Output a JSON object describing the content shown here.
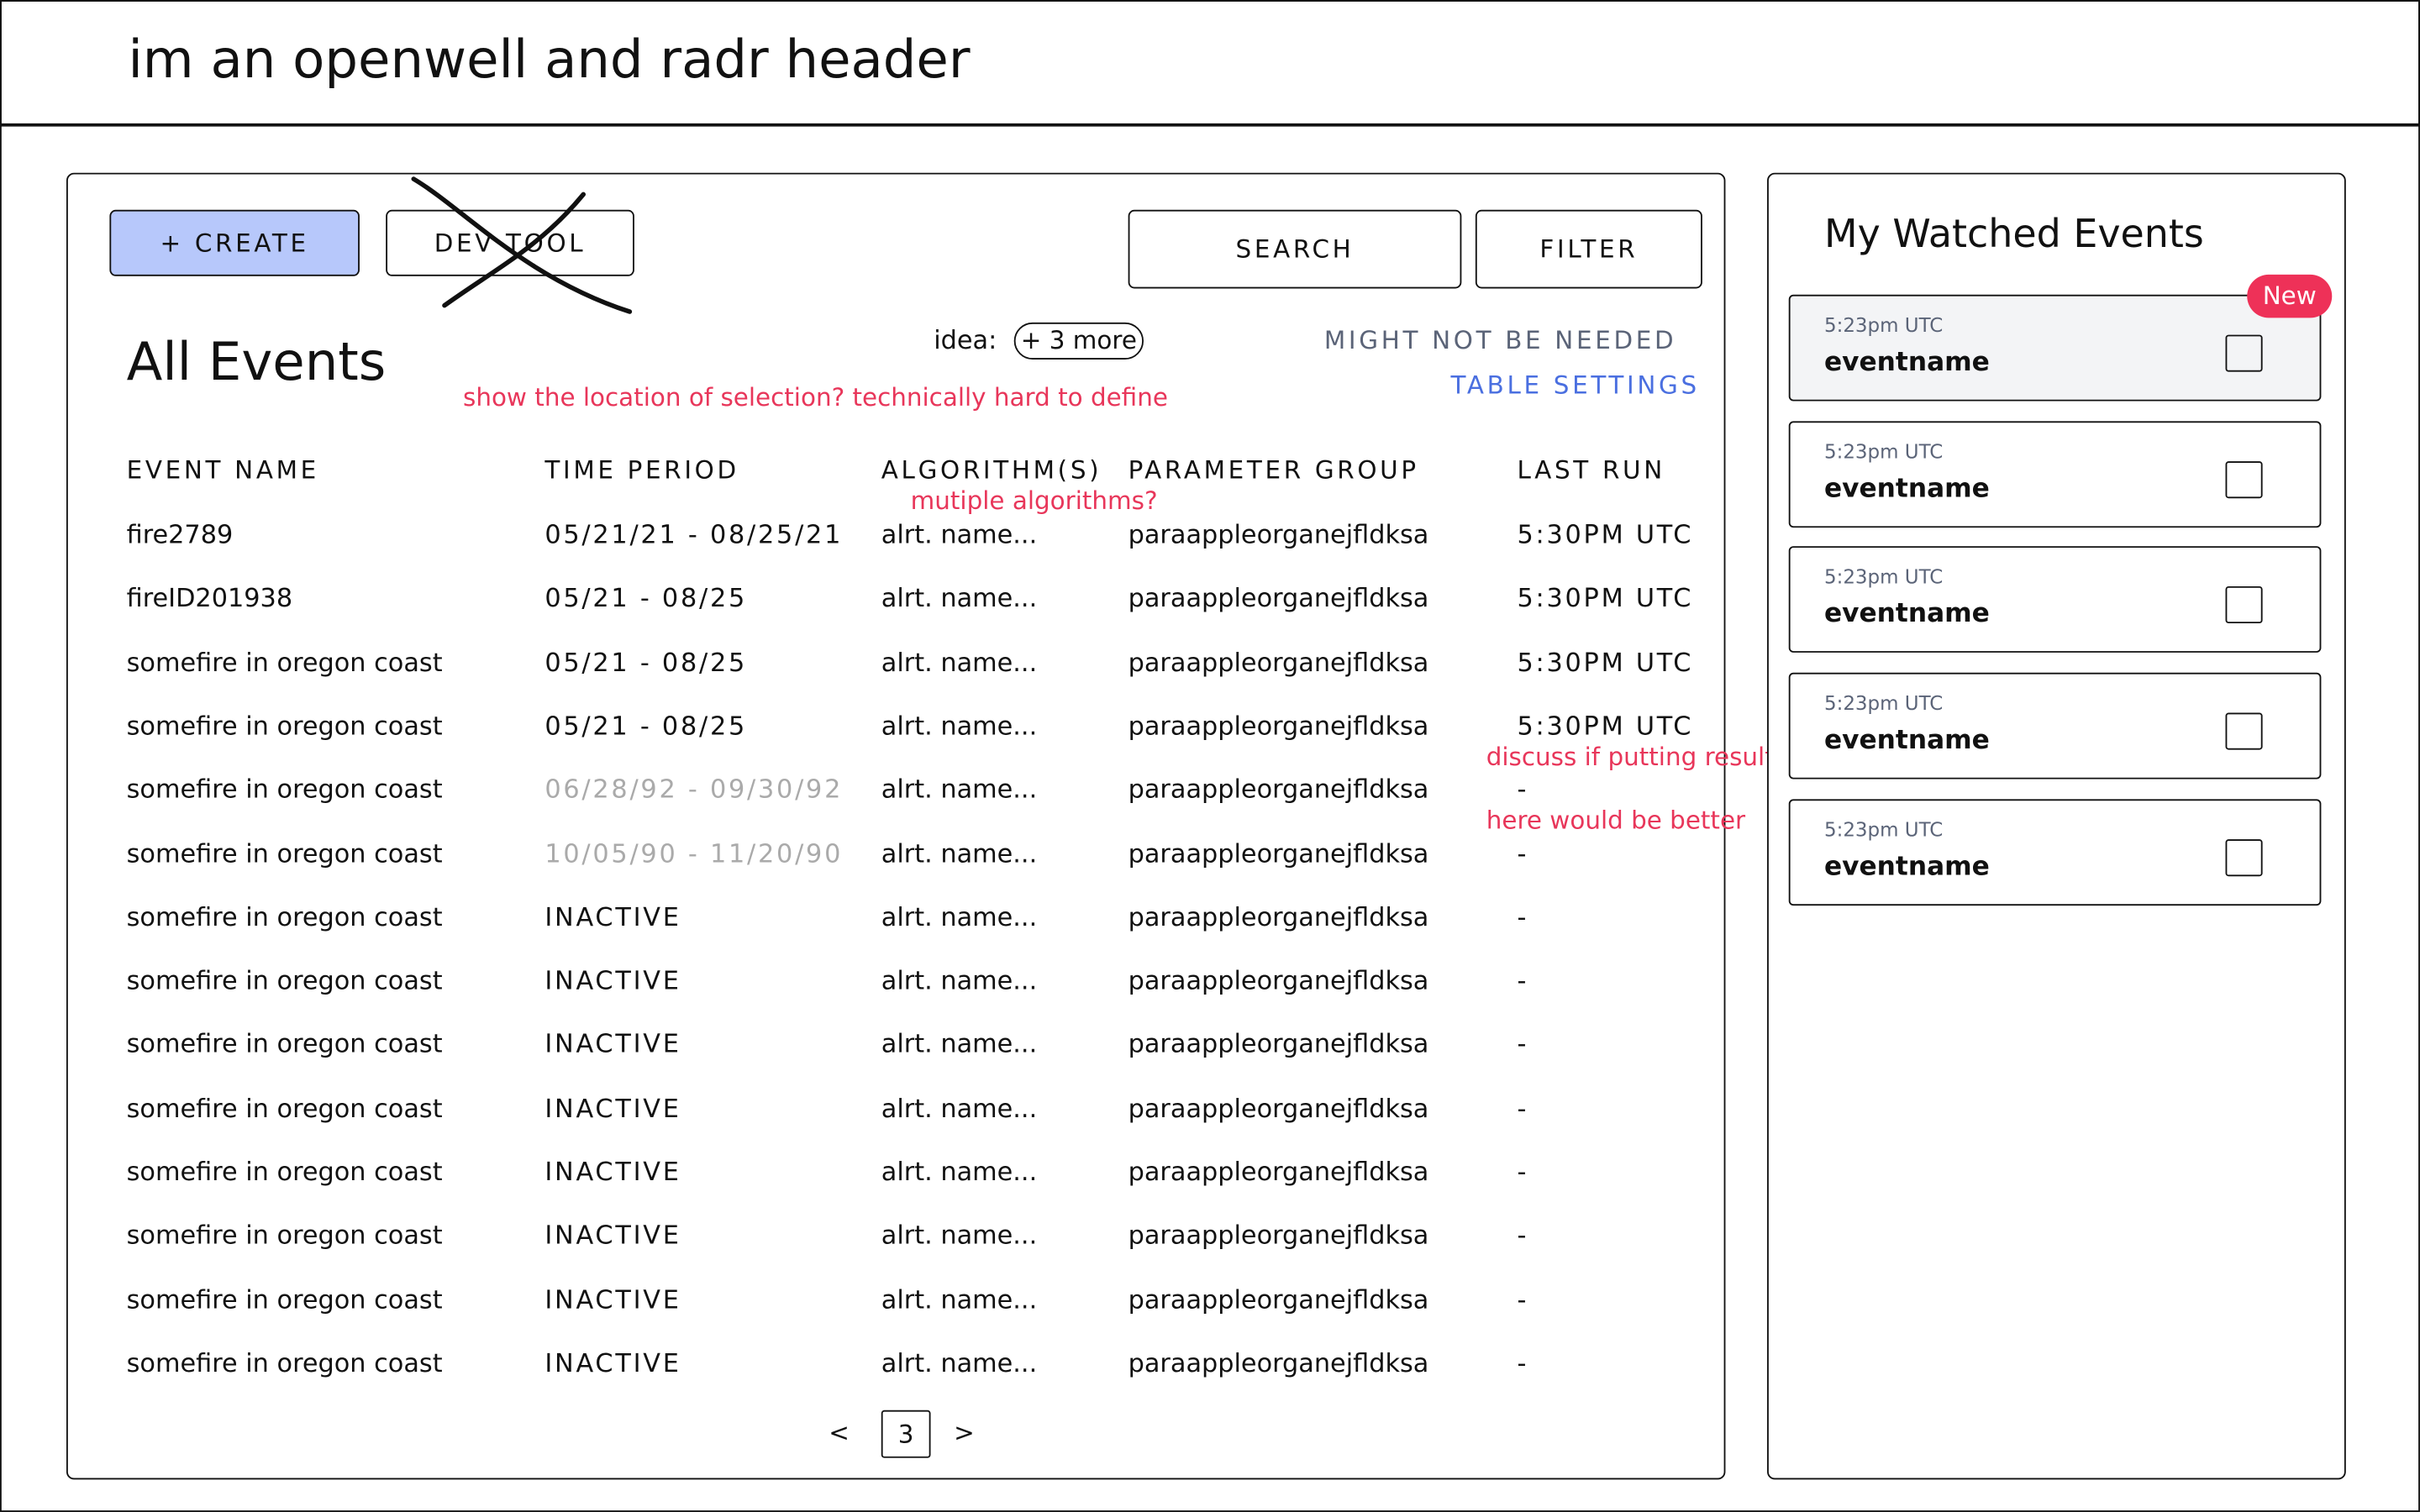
{
  "header": {
    "title": "im an openwell and radr header"
  },
  "toolbar": {
    "create_label": "+ CREATE",
    "devtool_label": "DEV TOOL",
    "search_label": "SEARCH",
    "filter_label": "FILTER"
  },
  "events": {
    "title": "All Events",
    "idea_label": "idea:",
    "more_chip": "+ 3 more",
    "might_not_be_needed": "MIGHT NOT BE NEEDED",
    "table_settings": "TABLE SETTINGS",
    "columns": [
      "EVENT NAME",
      "TIME PERIOD",
      "ALGORITHM(S)",
      "PARAMETER GROUP",
      "LAST RUN"
    ],
    "rows": [
      [
        "fire2789",
        "05/21/21 - 08/25/21",
        "alrt. name...",
        "paraappleorganejfldksa",
        "5:30PM UTC"
      ],
      [
        "fireID201938",
        "05/21 - 08/25",
        "alrt. name...",
        "paraappleorganejfldksa",
        "5:30PM UTC"
      ],
      [
        "somefire in oregon coast",
        "05/21 - 08/25",
        "alrt. name...",
        "paraappleorganejfldksa",
        "5:30PM UTC"
      ],
      [
        "somefire in oregon coast",
        "05/21 - 08/25",
        "alrt. name...",
        "paraappleorganejfldksa",
        "5:30PM UTC"
      ],
      [
        "somefire in oregon coast",
        "06/28/92 - 09/30/92",
        "alrt. name...",
        "paraappleorganejfldksa",
        "-"
      ],
      [
        "somefire in oregon coast",
        "10/05/90 - 11/20/90",
        "alrt. name...",
        "paraappleorganejfldksa",
        "-"
      ],
      [
        "somefire in oregon coast",
        "INACTIVE",
        "alrt. name...",
        "paraappleorganejfldksa",
        "-"
      ],
      [
        "somefire in oregon coast",
        "INACTIVE",
        "alrt. name...",
        "paraappleorganejfldksa",
        "-"
      ],
      [
        "somefire in oregon coast",
        "INACTIVE",
        "alrt. name...",
        "paraappleorganejfldksa",
        "-"
      ],
      [
        "somefire in oregon coast",
        "INACTIVE",
        "alrt. name...",
        "paraappleorganejfldksa",
        "-"
      ],
      [
        "somefire in oregon coast",
        "INACTIVE",
        "alrt. name...",
        "paraappleorganejfldksa",
        "-"
      ],
      [
        "somefire in oregon coast",
        "INACTIVE",
        "alrt. name...",
        "paraappleorganejfldksa",
        "-"
      ],
      [
        "somefire in oregon coast",
        "INACTIVE",
        "alrt. name...",
        "paraappleorganejfldksa",
        "-"
      ],
      [
        "somefire in oregon coast",
        "INACTIVE",
        "alrt. name...",
        "paraappleorganejfldksa",
        "-"
      ]
    ],
    "muted_time_rows": [
      4,
      5
    ],
    "pagination": {
      "prev": "<",
      "current": "3",
      "next": ">"
    }
  },
  "annotations": {
    "selection_note": "show the location of selection? technically hard to define",
    "algorithms_note": "mutiple algorithms?",
    "result_note_line1": "discuss if putting result",
    "result_note_line2": "here would be better"
  },
  "watched": {
    "title": "My Watched Events",
    "new_badge": "New",
    "items": [
      {
        "time": "5:23pm UTC",
        "name": "eventname",
        "highlighted": true,
        "checked": false
      },
      {
        "time": "5:23pm UTC",
        "name": "eventname",
        "highlighted": false,
        "checked": false
      },
      {
        "time": "5:23pm UTC",
        "name": "eventname",
        "highlighted": false,
        "checked": false
      },
      {
        "time": "5:23pm UTC",
        "name": "eventname",
        "highlighted": false,
        "checked": false
      },
      {
        "time": "5:23pm UTC",
        "name": "eventname",
        "highlighted": false,
        "checked": false
      }
    ]
  },
  "colors": {
    "create_bg": "#b7c8fb",
    "annotation": "#e8365a",
    "muted_link": "#5b6478",
    "link": "#4a6fe0",
    "new_badge": "#ee3158",
    "highlight_card": "#f3f4f6",
    "muted_text": "#aaaaaa"
  }
}
